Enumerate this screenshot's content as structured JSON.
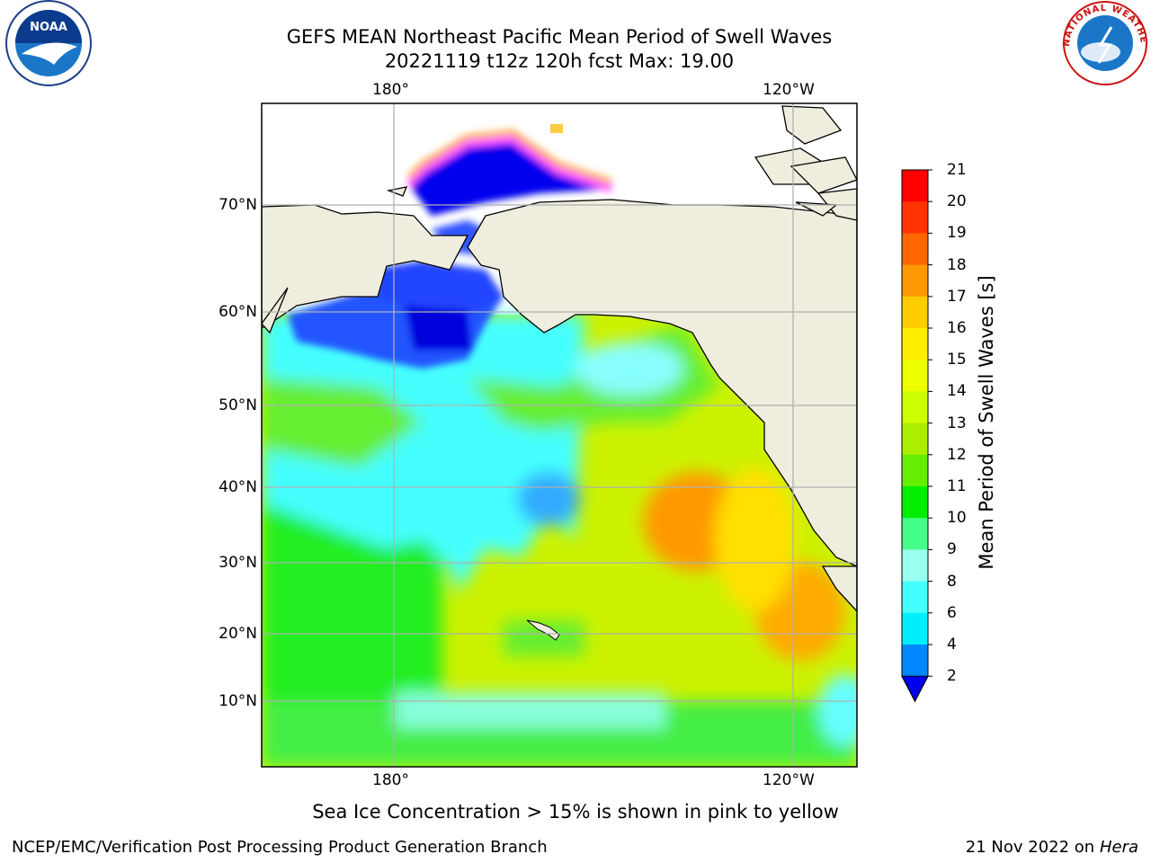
{
  "header": {
    "title": "GEFS MEAN Northeast Pacific Mean Period of Swell Waves",
    "subtitle": "20221119 t12z 120h fcst   Max: 19.00"
  },
  "logos": {
    "left": "NOAA",
    "right": "NATIONAL WEATHER SERVICE"
  },
  "map": {
    "lon_labels_top": [
      "180°",
      "120°W"
    ],
    "lon_labels_bottom": [
      "180°",
      "120°W"
    ],
    "lat_labels": [
      "70°N",
      "60°N",
      "50°N",
      "40°N",
      "30°N",
      "20°N",
      "10°N"
    ],
    "colors": {
      "land": "#efedde",
      "coast": "#000000",
      "grid": "#b0b0b0"
    }
  },
  "colorbar": {
    "title": "Mean Period of Swell Waves [s]",
    "ticks": [
      "21",
      "20",
      "19",
      "18",
      "17",
      "16",
      "15",
      "14",
      "13",
      "12",
      "11",
      "10",
      "9",
      "8",
      "6",
      "4",
      "2"
    ],
    "colors": [
      "#ff0000",
      "#ff3300",
      "#ff6600",
      "#ff9900",
      "#ffcc00",
      "#ffee00",
      "#eeff00",
      "#ccff00",
      "#aaee00",
      "#66ee00",
      "#00ee00",
      "#44ff88",
      "#99ffee",
      "#44ffff",
      "#00eeff",
      "#0088ff"
    ],
    "under_color": "#0000ee"
  },
  "caption": "Sea Ice Concentration > 15% is shown in pink to yellow",
  "footer": {
    "left": "NCEP/EMC/Verification Post Processing Product Generation Branch",
    "date": "21 Nov 2022 on",
    "host": "Hera"
  }
}
